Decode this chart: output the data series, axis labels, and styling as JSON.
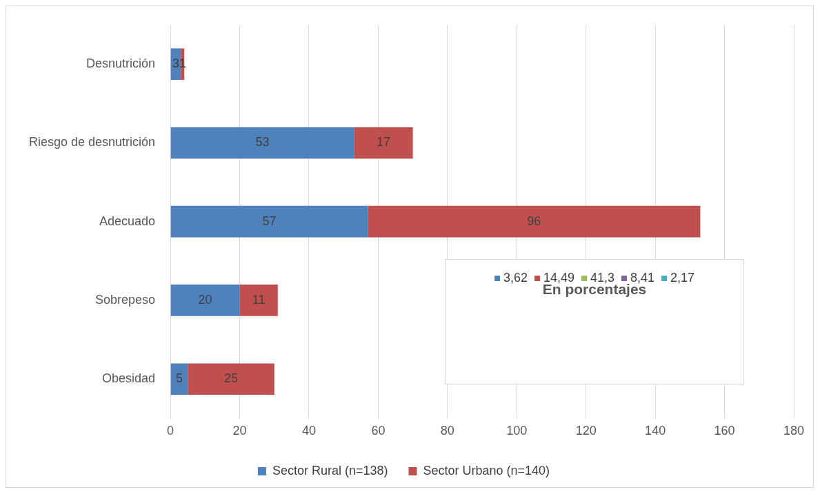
{
  "chart_data": [
    {
      "type": "bar",
      "orientation": "horizontal",
      "stacked": true,
      "categories": [
        "Desnutrición",
        "Riesgo de desnutrición",
        "Adecuado",
        "Sobrepeso",
        "Obesidad"
      ],
      "series": [
        {
          "name": "Sector Rural (n=138)",
          "color": "#4f81bd",
          "values": [
            3,
            53,
            57,
            20,
            5
          ]
        },
        {
          "name": "Sector Urbano (n=140)",
          "color": "#c0504d",
          "values": [
            1,
            17,
            96,
            11,
            25
          ]
        }
      ],
      "xlim": [
        0,
        180
      ],
      "xticks": [
        0,
        20,
        40,
        60,
        80,
        100,
        120,
        140,
        160,
        180
      ],
      "grid": "x",
      "legend": "bottom",
      "data_labels": true
    },
    {
      "type": "other",
      "title": "En porcentajes",
      "annotations": [
        "3,62",
        "14,49",
        "41,3",
        "8,41",
        "2,17"
      ],
      "colors": [
        "#4f81bd",
        "#c0504d",
        "#9bbb59",
        "#8064a2",
        "#4bacc6"
      ]
    }
  ]
}
